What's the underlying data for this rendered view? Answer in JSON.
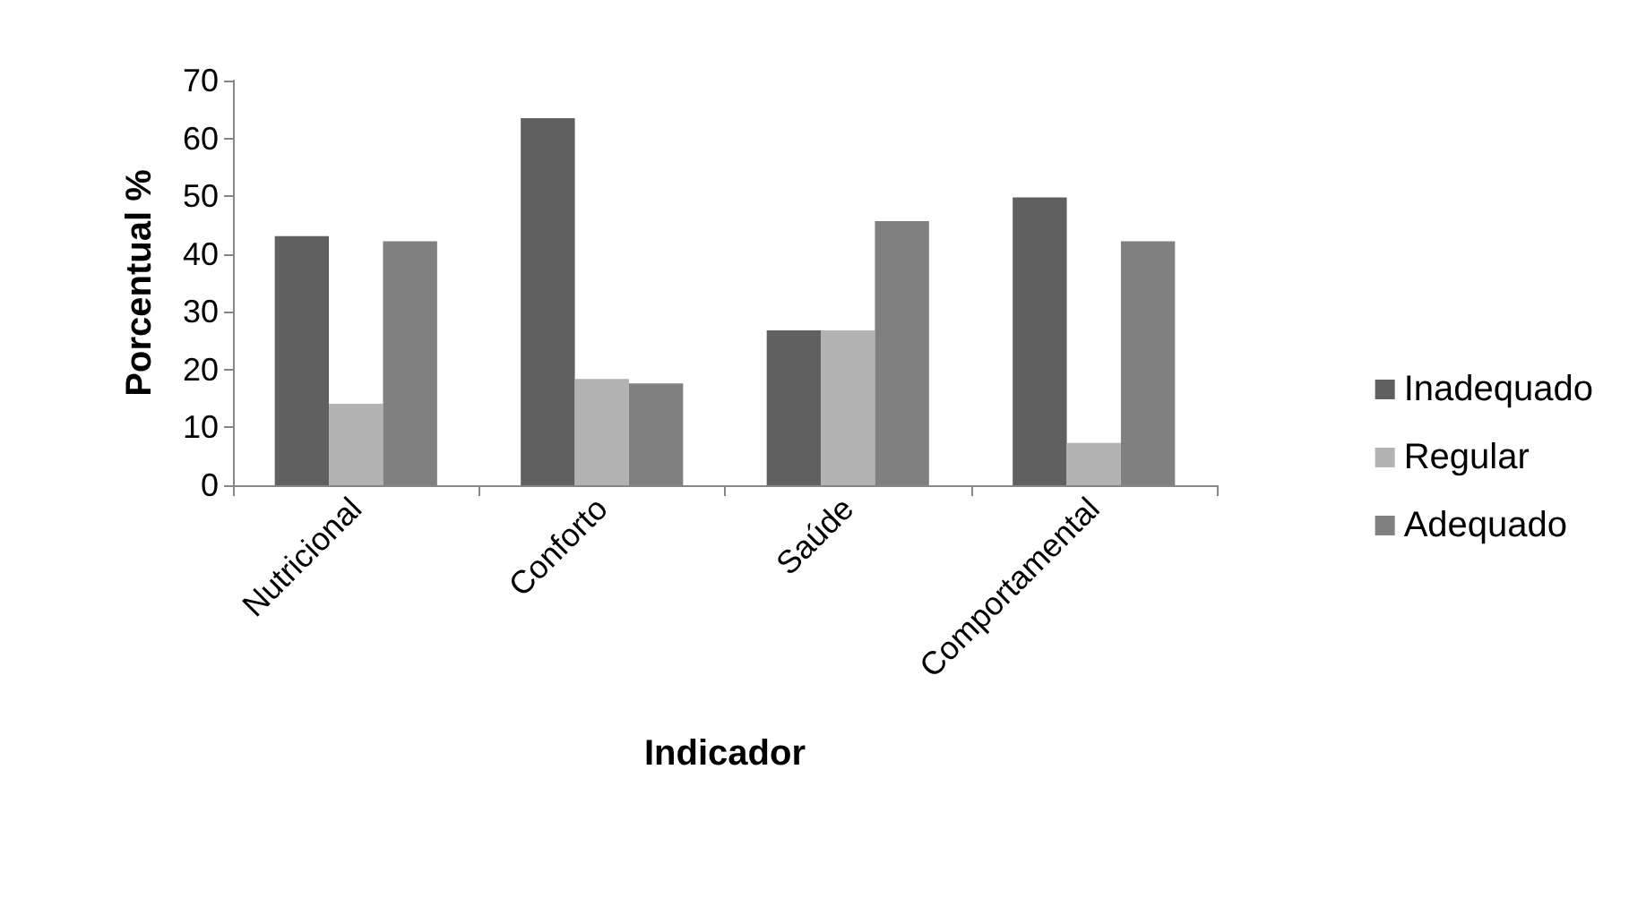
{
  "chart_data": {
    "type": "bar",
    "xlabel": "Indicador",
    "ylabel": "Porcentual %",
    "categories": [
      "Nutricional",
      "Conforto",
      "Saúde",
      "Comportamental"
    ],
    "series": [
      {
        "name": "Inadequado",
        "color": "#606060",
        "values": [
          43.1,
          63.5,
          26.8,
          49.8
        ]
      },
      {
        "name": "Regular",
        "color": "#b3b3b3",
        "values": [
          14.1,
          18.4,
          26.8,
          7.3
        ]
      },
      {
        "name": "Adequado",
        "color": "#808080",
        "values": [
          42.2,
          17.6,
          45.7,
          42.2
        ]
      }
    ],
    "ylim": [
      0,
      70
    ],
    "yticks": [
      0,
      10,
      20,
      30,
      40,
      50,
      60,
      70
    ],
    "grid": false,
    "legend": "right"
  }
}
